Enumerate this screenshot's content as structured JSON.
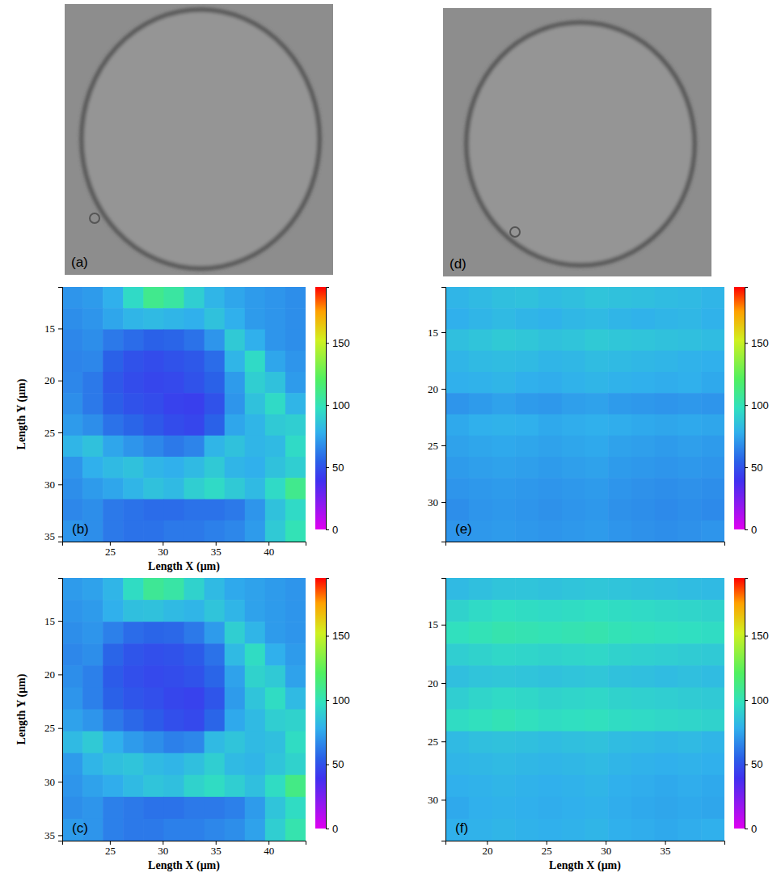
{
  "images": [
    {
      "label": "(a)"
    },
    {
      "label": "(d)"
    }
  ],
  "chart_data": [
    {
      "type": "heatmap",
      "label": "(b)",
      "xlabel": "Length X (μm)",
      "ylabel": "Length Y (μm)",
      "xlim": [
        20.5,
        43.5
      ],
      "ylim": [
        11,
        35.5
      ],
      "xticks": [
        25,
        30,
        35,
        40
      ],
      "yticks": [
        15,
        20,
        25,
        30,
        35
      ],
      "cells": [
        [
          70,
          72,
          78,
          95,
          110,
          105,
          90,
          80,
          75,
          72,
          70,
          68
        ],
        [
          68,
          70,
          75,
          80,
          82,
          80,
          78,
          85,
          78,
          72,
          70,
          68
        ],
        [
          66,
          68,
          62,
          58,
          55,
          56,
          60,
          70,
          88,
          78,
          70,
          68
        ],
        [
          65,
          66,
          55,
          50,
          48,
          50,
          52,
          58,
          80,
          95,
          75,
          70
        ],
        [
          66,
          62,
          52,
          48,
          46,
          47,
          50,
          55,
          72,
          90,
          85,
          72
        ],
        [
          68,
          62,
          54,
          50,
          48,
          45,
          44,
          50,
          70,
          85,
          95,
          80
        ],
        [
          72,
          68,
          60,
          56,
          52,
          48,
          46,
          55,
          75,
          80,
          88,
          90
        ],
        [
          80,
          85,
          75,
          70,
          66,
          62,
          65,
          80,
          85,
          80,
          82,
          95
        ],
        [
          70,
          78,
          82,
          85,
          80,
          78,
          82,
          88,
          80,
          78,
          85,
          90
        ],
        [
          68,
          72,
          75,
          80,
          85,
          82,
          90,
          95,
          88,
          82,
          95,
          110
        ],
        [
          66,
          68,
          62,
          60,
          58,
          58,
          60,
          60,
          62,
          70,
          85,
          95
        ],
        [
          70,
          68,
          62,
          60,
          60,
          62,
          62,
          64,
          66,
          72,
          88,
          100
        ]
      ],
      "color_range": [
        0,
        195
      ],
      "color_ticks": [
        0,
        50,
        100,
        150
      ]
    },
    {
      "type": "heatmap",
      "label": "(c)",
      "xlabel": "Length X (μm)",
      "ylabel": "Length Y (μm)",
      "xlim": [
        20.5,
        43.5
      ],
      "ylim": [
        11,
        35.5
      ],
      "xticks": [
        25,
        30,
        35,
        40
      ],
      "yticks": [
        15,
        20,
        25,
        30,
        35
      ],
      "cells": [
        [
          72,
          74,
          80,
          96,
          108,
          104,
          92,
          82,
          76,
          74,
          72,
          70
        ],
        [
          70,
          72,
          78,
          84,
          85,
          82,
          80,
          86,
          80,
          74,
          72,
          70
        ],
        [
          68,
          70,
          64,
          58,
          56,
          57,
          62,
          72,
          90,
          80,
          72,
          70
        ],
        [
          66,
          68,
          56,
          51,
          49,
          50,
          53,
          60,
          82,
          96,
          78,
          72
        ],
        [
          68,
          64,
          53,
          49,
          47,
          48,
          50,
          56,
          74,
          92,
          88,
          74
        ],
        [
          70,
          64,
          55,
          51,
          49,
          46,
          45,
          51,
          72,
          86,
          96,
          82
        ],
        [
          74,
          70,
          62,
          57,
          53,
          49,
          47,
          56,
          76,
          82,
          90,
          92
        ],
        [
          82,
          88,
          78,
          72,
          68,
          64,
          66,
          82,
          86,
          82,
          84,
          96
        ],
        [
          72,
          80,
          84,
          86,
          82,
          80,
          84,
          90,
          82,
          80,
          86,
          92
        ],
        [
          70,
          74,
          77,
          82,
          86,
          84,
          92,
          96,
          90,
          84,
          96,
          112
        ],
        [
          68,
          70,
          64,
          62,
          60,
          60,
          62,
          62,
          64,
          72,
          86,
          96
        ],
        [
          72,
          70,
          64,
          62,
          62,
          64,
          64,
          66,
          68,
          74,
          90,
          102
        ]
      ],
      "color_range": [
        0,
        195
      ],
      "color_ticks": [
        0,
        50,
        100,
        150
      ]
    },
    {
      "type": "heatmap",
      "label": "(e)",
      "tick_labels": "y",
      "xlim": [
        16.5,
        40
      ],
      "ylim": [
        11,
        33.5
      ],
      "yticks": [
        15,
        20,
        25,
        30
      ],
      "cells": [
        [
          80,
          82,
          84,
          85,
          83,
          84,
          86,
          85,
          84,
          83,
          82,
          80
        ],
        [
          78,
          80,
          82,
          80,
          79,
          81,
          82,
          80,
          79,
          80,
          81,
          79
        ],
        [
          84,
          86,
          88,
          87,
          85,
          86,
          88,
          87,
          86,
          85,
          84,
          83
        ],
        [
          80,
          82,
          83,
          82,
          80,
          81,
          83,
          82,
          81,
          80,
          79,
          78
        ],
        [
          78,
          79,
          80,
          78,
          77,
          79,
          80,
          79,
          78,
          77,
          78,
          76
        ],
        [
          70,
          72,
          74,
          72,
          71,
          73,
          74,
          72,
          71,
          70,
          71,
          70
        ],
        [
          76,
          78,
          79,
          78,
          76,
          77,
          78,
          77,
          76,
          75,
          76,
          75
        ],
        [
          74,
          75,
          76,
          75,
          74,
          75,
          76,
          74,
          73,
          72,
          73,
          72
        ],
        [
          72,
          73,
          74,
          73,
          72,
          73,
          74,
          72,
          71,
          70,
          71,
          70
        ],
        [
          70,
          71,
          72,
          71,
          70,
          71,
          72,
          70,
          69,
          68,
          69,
          68
        ],
        [
          68,
          70,
          71,
          70,
          69,
          70,
          71,
          69,
          68,
          67,
          68,
          67
        ],
        [
          70,
          71,
          72,
          71,
          70,
          71,
          72,
          70,
          69,
          68,
          69,
          70
        ]
      ],
      "color_range": [
        0,
        195
      ],
      "color_ticks": [
        0,
        50,
        100,
        150
      ]
    },
    {
      "type": "heatmap",
      "label": "(f)",
      "xlabel": "Length X (μm)",
      "xlim": [
        16.5,
        40
      ],
      "ylim": [
        11,
        33.5
      ],
      "xticks": [
        20,
        25,
        30,
        35
      ],
      "yticks": [
        15,
        20,
        25,
        30
      ],
      "cells": [
        [
          82,
          84,
          86,
          86,
          85,
          86,
          87,
          86,
          85,
          84,
          83,
          82
        ],
        [
          92,
          95,
          97,
          96,
          95,
          96,
          97,
          96,
          95,
          94,
          93,
          92
        ],
        [
          98,
          100,
          102,
          101,
          100,
          101,
          102,
          100,
          99,
          98,
          97,
          96
        ],
        [
          90,
          92,
          94,
          93,
          92,
          93,
          94,
          92,
          91,
          90,
          89,
          88
        ],
        [
          84,
          86,
          87,
          86,
          85,
          86,
          87,
          85,
          84,
          83,
          84,
          83
        ],
        [
          90,
          93,
          95,
          94,
          92,
          93,
          94,
          92,
          91,
          90,
          89,
          88
        ],
        [
          96,
          98,
          100,
          98,
          96,
          97,
          98,
          96,
          95,
          94,
          93,
          92
        ],
        [
          82,
          84,
          85,
          84,
          83,
          84,
          85,
          83,
          82,
          81,
          82,
          80
        ],
        [
          80,
          81,
          82,
          81,
          80,
          81,
          82,
          80,
          79,
          78,
          79,
          78
        ],
        [
          78,
          79,
          80,
          79,
          78,
          79,
          80,
          78,
          77,
          76,
          77,
          76
        ],
        [
          76,
          78,
          79,
          78,
          77,
          78,
          79,
          77,
          76,
          75,
          76,
          75
        ],
        [
          78,
          79,
          80,
          79,
          78,
          79,
          80,
          78,
          77,
          76,
          77,
          78
        ]
      ],
      "color_range": [
        0,
        195
      ],
      "color_ticks": [
        0,
        50,
        100,
        150
      ]
    }
  ]
}
